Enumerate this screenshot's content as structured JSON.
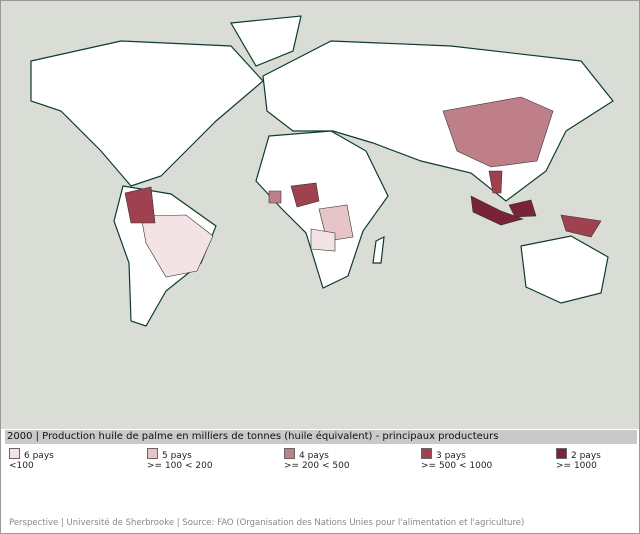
{
  "title": "2000 | Production huile de palme en milliers de tonnes (huile équivalent) - principaux producteurs",
  "legend": {
    "items": [
      {
        "count": "6 pays",
        "range": "<100",
        "color": "#f3e3e4"
      },
      {
        "count": "5 pays",
        "range": ">= 100 < 200",
        "color": "#e6c4c7"
      },
      {
        "count": "4 pays",
        "range": ">= 200 < 500",
        "color": "#bf7f88"
      },
      {
        "count": "3 pays",
        "range": ">= 500 < 1000",
        "color": "#a0414f"
      },
      {
        "count": "2 pays",
        "range": ">= 1000",
        "color": "#7a2236"
      }
    ]
  },
  "footer": "Perspective | Université de Sherbrooke | Source: FAO (Organisation des Nations Unies pour l'alimentation et l'agriculture)"
}
